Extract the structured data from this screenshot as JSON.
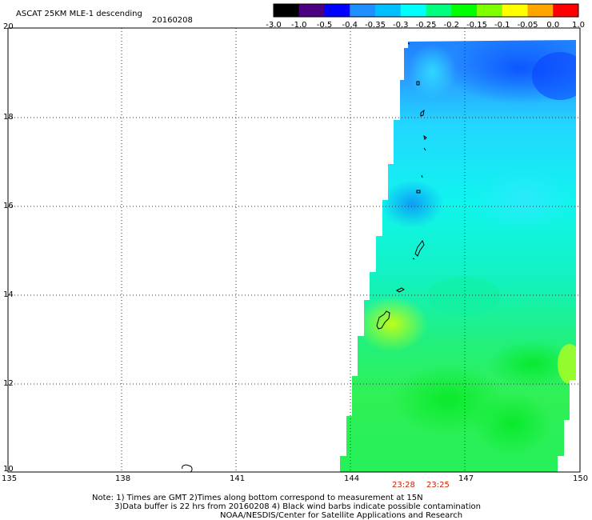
{
  "title": "ASCAT 25KM MLE-1 descending",
  "date": "20160208",
  "colorbar": {
    "labels": [
      "-3.0",
      "-1.0",
      "-0.5",
      "-0.4",
      "-0.35",
      "-0.3",
      "-0.25",
      "-0.2",
      "-0.15",
      "-0.1",
      "-0.05",
      "0.0",
      "1.0"
    ],
    "colors": [
      "#000000",
      "#4b0082",
      "#0000ff",
      "#1e90ff",
      "#00bfff",
      "#00ffff",
      "#00ff7f",
      "#00ff00",
      "#7fff00",
      "#ffff00",
      "#ffa500",
      "#ff0000"
    ]
  },
  "map": {
    "lat_range": [
      10,
      20
    ],
    "lon_range": [
      135,
      150
    ],
    "lat_labels": [
      "20",
      "18",
      "16",
      "14",
      "12",
      "10"
    ],
    "lon_labels": [
      "135",
      "138",
      "141",
      "144",
      "147",
      "150"
    ],
    "grid": "dotted"
  },
  "pass_times": [
    "23:28",
    "23:25"
  ],
  "footer": {
    "line1": "Note: 1) Times are GMT 2)Times along bottom correspond to measurement at 15N",
    "line2": "3)Data buffer is 22 hrs from 20160208 4) Black wind barbs indicate possible contamination",
    "line3": "NOAA/NESDIS/Center for Satellite Applications and Research"
  }
}
